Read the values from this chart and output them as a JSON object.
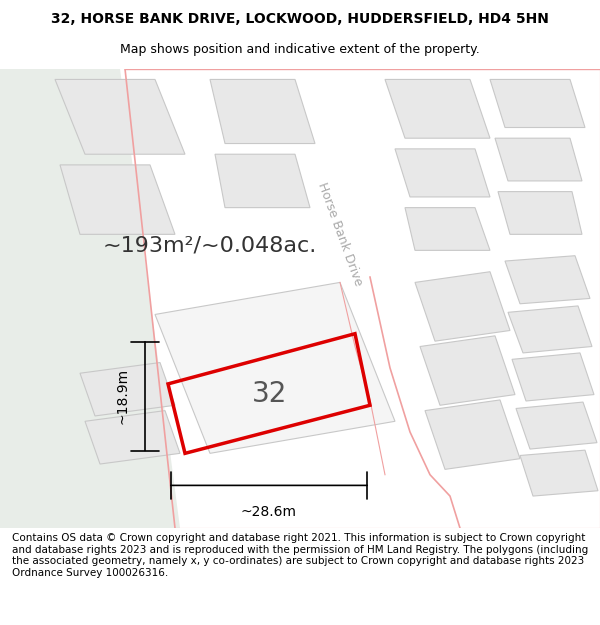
{
  "title_line1": "32, HORSE BANK DRIVE, LOCKWOOD, HUDDERSFIELD, HD4 5HN",
  "title_line2": "Map shows position and indicative extent of the property.",
  "area_text": "~193m²/~0.048ac.",
  "label_32": "32",
  "dim_height": "~18.9m",
  "dim_width": "~28.6m",
  "street_name": "Horse Bank Drive",
  "footer_text": "Contains OS data © Crown copyright and database right 2021. This information is subject to Crown copyright and database rights 2023 and is reproduced with the permission of HM Land Registry. The polygons (including the associated geometry, namely x, y co-ordinates) are subject to Crown copyright and database rights 2023 Ordnance Survey 100026316.",
  "bg_map_color": "#f0f4f0",
  "bg_left_color": "#e8ede8",
  "road_color": "#f5f5f5",
  "building_fill": "#e8e8e8",
  "building_stroke": "#c8c8c8",
  "red_line_color": "#dd0000",
  "pink_line_color": "#f0a0a0",
  "dim_line_color": "#000000",
  "title_fontsize": 10,
  "subtitle_fontsize": 9,
  "area_fontsize": 16,
  "label_fontsize": 20,
  "dim_fontsize": 10,
  "footer_fontsize": 7.5,
  "street_fontsize": 9
}
